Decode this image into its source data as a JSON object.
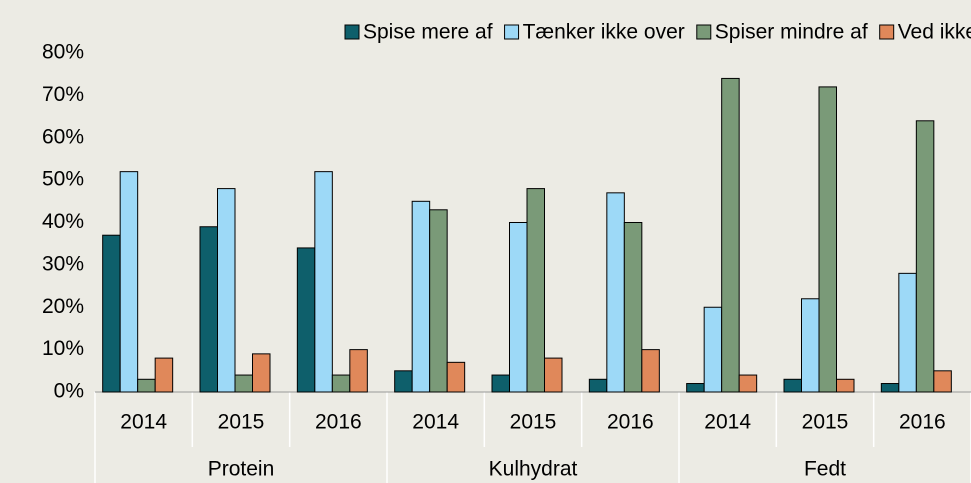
{
  "chart_data": {
    "type": "bar",
    "categories": [
      "2014",
      "2015",
      "2016",
      "2014",
      "2015",
      "2016",
      "2014",
      "2015",
      "2016"
    ],
    "groups": [
      "Protein",
      "Kulhydrat",
      "Fedt"
    ],
    "series": [
      {
        "name": "Spise mere af",
        "color": "#0e5f6b",
        "values": [
          37,
          39,
          34,
          5,
          4,
          3,
          2,
          3,
          2
        ]
      },
      {
        "name": "Tænker ikke over",
        "color": "#9dd9f7",
        "values": [
          52,
          48,
          52,
          45,
          40,
          47,
          20,
          22,
          28
        ]
      },
      {
        "name": "Spiser mindre af",
        "color": "#7a9a78",
        "values": [
          3,
          4,
          4,
          43,
          48,
          40,
          74,
          72,
          64
        ]
      },
      {
        "name": "Ved ikke",
        "color": "#e0885a",
        "values": [
          8,
          9,
          10,
          7,
          8,
          10,
          4,
          3,
          5
        ]
      }
    ],
    "ylim": [
      0,
      80
    ],
    "yticks": [
      {
        "value": 0,
        "label": "0%"
      },
      {
        "value": 10,
        "label": "10%"
      },
      {
        "value": 20,
        "label": "20%"
      },
      {
        "value": 30,
        "label": "30%"
      },
      {
        "value": 40,
        "label": "40%"
      },
      {
        "value": 50,
        "label": "50%"
      },
      {
        "value": 60,
        "label": "60%"
      },
      {
        "value": 70,
        "label": "70%"
      },
      {
        "value": 80,
        "label": "80%"
      }
    ],
    "legend": "top"
  }
}
